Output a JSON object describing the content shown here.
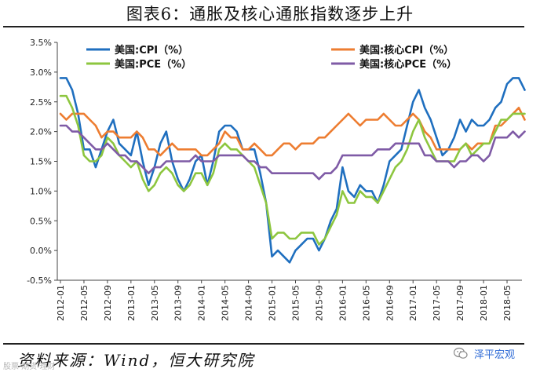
{
  "page": {
    "title": "图表6：通胀及核心通胀指数逐步上升",
    "source": "资料来源：Wind，恒大研究院",
    "watermark_left": "股票·期货·理财",
    "watermark_right": "泽平宏观"
  },
  "chart_data": {
    "type": "line",
    "title": "图表6：通胀及核心通胀指数逐步上升",
    "xlabel": "",
    "ylabel": "",
    "ylim": [
      -0.5,
      3.5
    ],
    "yticks": [
      "-0.5%",
      "0.0%",
      "0.5%",
      "1.0%",
      "1.5%",
      "2.0%",
      "2.5%",
      "3.0%",
      "3.5%"
    ],
    "yticks_values": [
      -0.5,
      0,
      0.5,
      1.0,
      1.5,
      2.0,
      2.5,
      3.0,
      3.5
    ],
    "xticks": [
      "2012-01",
      "2012-05",
      "2012-09",
      "2013-01",
      "2013-05",
      "2013-09",
      "2014-01",
      "2014-05",
      "2014-09",
      "2015-01",
      "2015-05",
      "2015-09",
      "2016-01",
      "2016-05",
      "2016-09",
      "2017-01",
      "2017-05",
      "2017-09",
      "2018-01",
      "2018-05"
    ],
    "start": "2012-01",
    "end": "2018-07",
    "grid": false,
    "legend": "top, two columns",
    "series": [
      {
        "name": "美国:CPI（%）",
        "color": "#1f6fbf",
        "values": [
          2.9,
          2.9,
          2.7,
          2.3,
          1.7,
          1.7,
          1.4,
          1.7,
          2.0,
          2.2,
          1.8,
          1.7,
          1.6,
          2.0,
          1.5,
          1.1,
          1.4,
          1.8,
          2.0,
          1.5,
          1.2,
          1.0,
          1.2,
          1.5,
          1.6,
          1.1,
          1.5,
          2.0,
          2.1,
          2.1,
          2.0,
          1.7,
          1.7,
          1.7,
          1.3,
          0.8,
          -0.1,
          0.0,
          -0.1,
          -0.2,
          0.0,
          0.1,
          0.2,
          0.2,
          0.0,
          0.2,
          0.5,
          0.7,
          1.4,
          1.0,
          0.9,
          1.1,
          1.0,
          1.0,
          0.8,
          1.1,
          1.5,
          1.6,
          1.7,
          2.1,
          2.5,
          2.7,
          2.4,
          2.2,
          1.9,
          1.6,
          1.7,
          1.9,
          2.2,
          2.0,
          2.2,
          2.1,
          2.1,
          2.2,
          2.4,
          2.5,
          2.8,
          2.9,
          2.9,
          2.7
        ]
      },
      {
        "name": "美国:核心CPI（%）",
        "color": "#ed7d31",
        "values": [
          2.3,
          2.2,
          2.3,
          2.3,
          2.3,
          2.2,
          2.1,
          1.9,
          2.0,
          2.0,
          1.9,
          1.9,
          1.9,
          2.0,
          1.9,
          1.7,
          1.7,
          1.6,
          1.7,
          1.8,
          1.7,
          1.7,
          1.7,
          1.7,
          1.6,
          1.6,
          1.7,
          1.8,
          2.0,
          1.9,
          1.9,
          1.7,
          1.7,
          1.8,
          1.7,
          1.6,
          1.6,
          1.7,
          1.8,
          1.8,
          1.7,
          1.8,
          1.8,
          1.8,
          1.9,
          1.9,
          2.0,
          2.1,
          2.2,
          2.3,
          2.2,
          2.1,
          2.2,
          2.2,
          2.2,
          2.3,
          2.2,
          2.1,
          2.1,
          2.2,
          2.3,
          2.2,
          2.0,
          1.9,
          1.7,
          1.7,
          1.7,
          1.7,
          1.7,
          1.8,
          1.7,
          1.8,
          1.8,
          1.8,
          2.1,
          2.1,
          2.2,
          2.3,
          2.4,
          2.2
        ]
      },
      {
        "name": "美国:PCE（%）",
        "color": "#8dc63f",
        "values": [
          2.6,
          2.6,
          2.4,
          2.1,
          1.6,
          1.5,
          1.5,
          1.6,
          1.9,
          1.8,
          1.6,
          1.5,
          1.4,
          1.5,
          1.2,
          1.0,
          1.1,
          1.3,
          1.4,
          1.3,
          1.1,
          1.0,
          1.1,
          1.3,
          1.3,
          1.1,
          1.3,
          1.7,
          1.8,
          1.7,
          1.7,
          1.6,
          1.5,
          1.4,
          1.1,
          0.8,
          0.2,
          0.3,
          0.3,
          0.2,
          0.2,
          0.3,
          0.3,
          0.3,
          0.1,
          0.2,
          0.4,
          0.6,
          1.0,
          0.8,
          0.8,
          1.0,
          0.9,
          0.9,
          0.8,
          1.0,
          1.2,
          1.4,
          1.5,
          1.7,
          2.0,
          2.2,
          1.9,
          1.7,
          1.5,
          1.5,
          1.5,
          1.5,
          1.7,
          1.8,
          1.6,
          1.7,
          1.8,
          1.8,
          2.0,
          2.2,
          2.2,
          2.3,
          2.3,
          2.3
        ]
      },
      {
        "name": "美国:核心PCE（%）",
        "color": "#7f5ba6",
        "values": [
          2.1,
          2.1,
          2.0,
          2.0,
          1.9,
          1.8,
          1.7,
          1.7,
          1.8,
          1.7,
          1.6,
          1.6,
          1.5,
          1.5,
          1.4,
          1.3,
          1.4,
          1.4,
          1.5,
          1.5,
          1.5,
          1.5,
          1.5,
          1.6,
          1.5,
          1.5,
          1.5,
          1.6,
          1.6,
          1.6,
          1.6,
          1.6,
          1.5,
          1.5,
          1.4,
          1.4,
          1.3,
          1.3,
          1.3,
          1.3,
          1.3,
          1.3,
          1.3,
          1.3,
          1.2,
          1.3,
          1.3,
          1.4,
          1.6,
          1.6,
          1.6,
          1.6,
          1.6,
          1.6,
          1.7,
          1.7,
          1.7,
          1.8,
          1.8,
          1.8,
          1.8,
          1.8,
          1.6,
          1.6,
          1.5,
          1.5,
          1.5,
          1.4,
          1.5,
          1.5,
          1.6,
          1.6,
          1.5,
          1.6,
          1.9,
          1.9,
          1.9,
          2.0,
          1.9,
          2.0
        ]
      }
    ]
  }
}
